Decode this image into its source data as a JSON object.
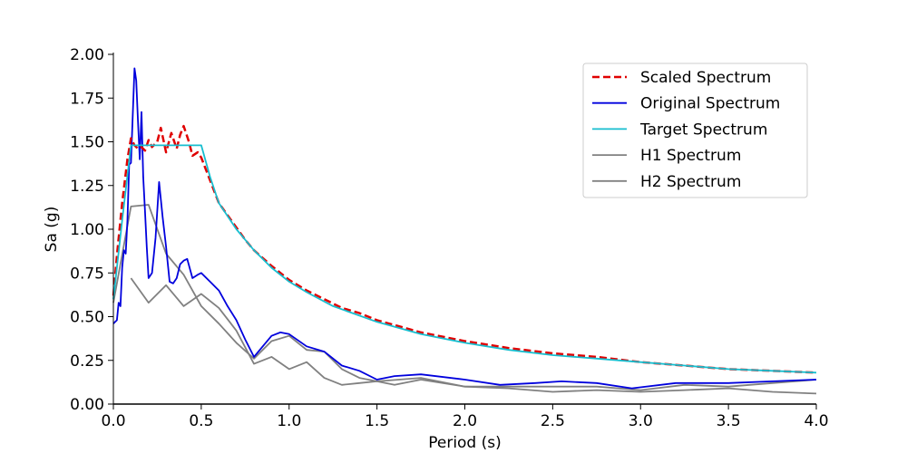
{
  "chart_data": {
    "type": "line",
    "title": "",
    "xlabel": "Period (s)",
    "ylabel": "Sa (g)",
    "xlim": [
      0.0,
      4.0
    ],
    "ylim": [
      0.0,
      2.0
    ],
    "xticks": [
      "0.0",
      "0.5",
      "1.0",
      "1.5",
      "2.0",
      "2.5",
      "3.0",
      "3.5",
      "4.0"
    ],
    "yticks": [
      "0.00",
      "0.25",
      "0.50",
      "0.75",
      "1.00",
      "1.25",
      "1.50",
      "1.75",
      "2.00"
    ],
    "grid": false,
    "legend_position": "top-right",
    "series": [
      {
        "name": "Scaled Spectrum",
        "color": "#e00000",
        "style": "dashed",
        "x": [
          0.0,
          0.02,
          0.05,
          0.08,
          0.1,
          0.12,
          0.14,
          0.16,
          0.18,
          0.2,
          0.22,
          0.25,
          0.27,
          0.3,
          0.33,
          0.36,
          0.38,
          0.4,
          0.43,
          0.45,
          0.48,
          0.5,
          0.55,
          0.6,
          0.65,
          0.7,
          0.75,
          0.8,
          0.9,
          1.0,
          1.1,
          1.2,
          1.3,
          1.4,
          1.5,
          1.75,
          2.0,
          2.25,
          2.5,
          2.75,
          3.0,
          3.25,
          3.5,
          3.75,
          4.0
        ],
        "y": [
          0.62,
          0.85,
          1.15,
          1.4,
          1.52,
          1.48,
          1.46,
          1.47,
          1.45,
          1.51,
          1.47,
          1.5,
          1.58,
          1.44,
          1.55,
          1.46,
          1.54,
          1.59,
          1.5,
          1.42,
          1.44,
          1.41,
          1.28,
          1.15,
          1.08,
          1.01,
          0.94,
          0.88,
          0.79,
          0.71,
          0.65,
          0.6,
          0.55,
          0.52,
          0.48,
          0.41,
          0.36,
          0.32,
          0.29,
          0.27,
          0.24,
          0.22,
          0.2,
          0.19,
          0.18
        ]
      },
      {
        "name": "Original Spectrum",
        "color": "#0000dd",
        "style": "solid",
        "x": [
          0.0,
          0.02,
          0.03,
          0.04,
          0.05,
          0.06,
          0.07,
          0.08,
          0.09,
          0.1,
          0.12,
          0.13,
          0.14,
          0.15,
          0.16,
          0.17,
          0.18,
          0.19,
          0.2,
          0.22,
          0.24,
          0.26,
          0.28,
          0.3,
          0.32,
          0.34,
          0.36,
          0.38,
          0.4,
          0.42,
          0.45,
          0.48,
          0.5,
          0.55,
          0.6,
          0.65,
          0.7,
          0.75,
          0.8,
          0.9,
          0.95,
          1.0,
          1.1,
          1.2,
          1.3,
          1.4,
          1.5,
          1.6,
          1.75,
          2.0,
          2.2,
          2.4,
          2.55,
          2.75,
          2.95,
          3.2,
          3.5,
          3.75,
          4.0
        ],
        "y": [
          0.46,
          0.48,
          0.58,
          0.56,
          0.78,
          0.88,
          0.86,
          1.05,
          1.37,
          1.38,
          1.92,
          1.85,
          1.62,
          1.4,
          1.67,
          1.3,
          1.1,
          0.9,
          0.72,
          0.75,
          0.95,
          1.27,
          1.07,
          0.9,
          0.7,
          0.69,
          0.72,
          0.8,
          0.82,
          0.83,
          0.72,
          0.74,
          0.75,
          0.7,
          0.65,
          0.56,
          0.48,
          0.37,
          0.27,
          0.39,
          0.41,
          0.4,
          0.33,
          0.3,
          0.22,
          0.19,
          0.14,
          0.16,
          0.17,
          0.14,
          0.11,
          0.12,
          0.13,
          0.12,
          0.09,
          0.12,
          0.12,
          0.13,
          0.14
        ]
      },
      {
        "name": "Target Spectrum",
        "color": "#17becf",
        "style": "solid",
        "x": [
          0.0,
          0.05,
          0.1,
          0.5,
          0.55,
          0.6,
          0.7,
          0.8,
          0.9,
          1.0,
          1.1,
          1.25,
          1.5,
          1.75,
          2.0,
          2.25,
          2.5,
          2.75,
          3.0,
          3.25,
          3.5,
          3.75,
          4.0
        ],
        "y": [
          0.6,
          1.05,
          1.48,
          1.48,
          1.3,
          1.15,
          1.0,
          0.88,
          0.78,
          0.7,
          0.64,
          0.56,
          0.47,
          0.4,
          0.35,
          0.31,
          0.28,
          0.26,
          0.24,
          0.22,
          0.2,
          0.19,
          0.18
        ]
      },
      {
        "name": "H1 Spectrum",
        "color": "#808080",
        "style": "solid",
        "x": [
          0.1,
          0.2,
          0.3,
          0.4,
          0.5,
          0.6,
          0.7,
          0.8,
          0.9,
          1.0,
          1.1,
          1.2,
          1.3,
          1.4,
          1.5,
          1.6,
          1.75,
          2.0,
          2.25,
          2.5,
          2.75,
          3.0,
          3.25,
          3.5,
          3.75,
          4.0
        ],
        "y": [
          0.72,
          0.58,
          0.68,
          0.56,
          0.63,
          0.55,
          0.42,
          0.23,
          0.27,
          0.2,
          0.24,
          0.15,
          0.11,
          0.12,
          0.13,
          0.11,
          0.14,
          0.1,
          0.09,
          0.07,
          0.08,
          0.07,
          0.08,
          0.09,
          0.07,
          0.06
        ]
      },
      {
        "name": "H2 Spectrum",
        "color": "#808080",
        "style": "solid",
        "x": [
          0.0,
          0.1,
          0.2,
          0.3,
          0.4,
          0.5,
          0.6,
          0.7,
          0.8,
          0.9,
          1.0,
          1.1,
          1.2,
          1.3,
          1.4,
          1.5,
          1.75,
          2.0,
          2.25,
          2.5,
          2.75,
          3.0,
          3.25,
          3.5,
          3.75,
          4.0
        ],
        "y": [
          0.58,
          1.13,
          1.14,
          0.86,
          0.74,
          0.56,
          0.46,
          0.35,
          0.26,
          0.36,
          0.39,
          0.31,
          0.3,
          0.2,
          0.15,
          0.13,
          0.15,
          0.1,
          0.1,
          0.1,
          0.1,
          0.08,
          0.11,
          0.1,
          0.12,
          0.14
        ]
      }
    ]
  }
}
